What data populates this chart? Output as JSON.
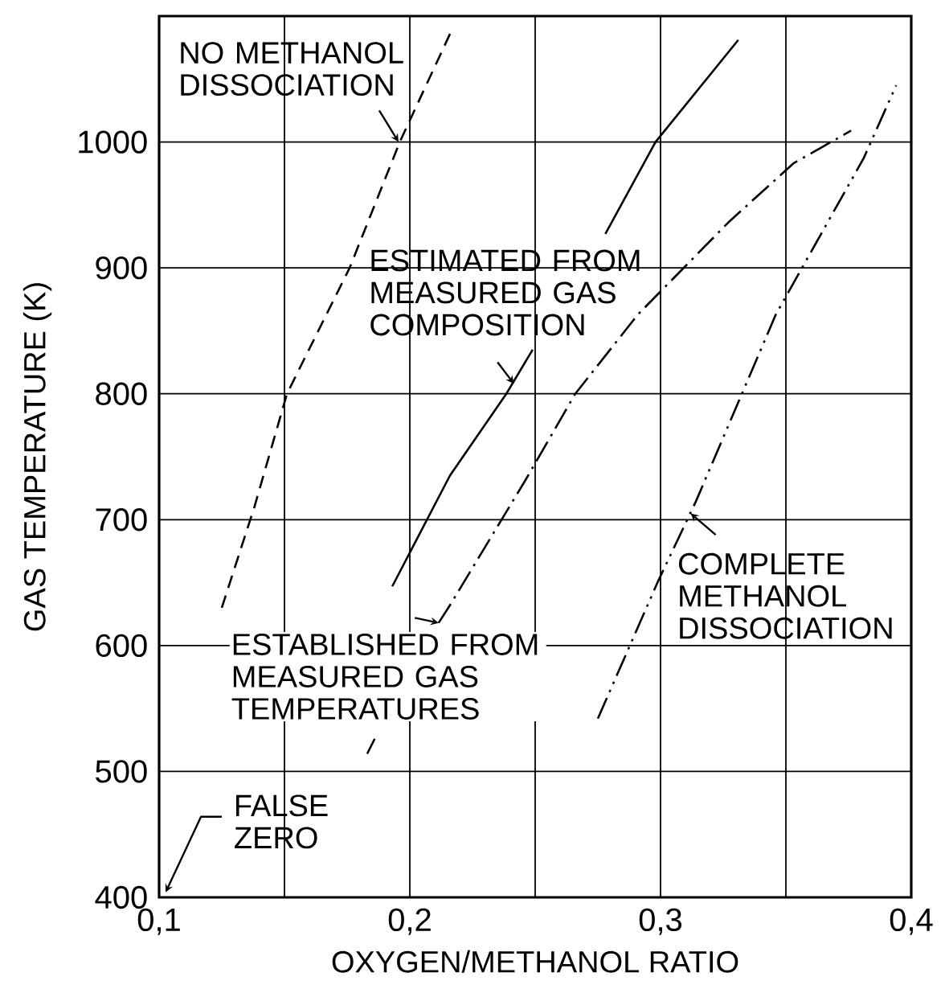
{
  "chart_data": {
    "type": "line",
    "xlabel": "OXYGEN/METHANOL RATIO",
    "ylabel": "GAS TEMPERATURE (K)",
    "xlim": [
      0.1,
      0.4
    ],
    "ylim": [
      400,
      1100
    ],
    "xticks": [
      {
        "value": 0.1,
        "label": "0,1"
      },
      {
        "value": 0.15,
        "label": null
      },
      {
        "value": 0.2,
        "label": "0,2"
      },
      {
        "value": 0.25,
        "label": null
      },
      {
        "value": 0.3,
        "label": "0,3"
      },
      {
        "value": 0.35,
        "label": null
      },
      {
        "value": 0.4,
        "label": "0,4"
      }
    ],
    "yticks": [
      400,
      500,
      600,
      700,
      800,
      900,
      1000
    ],
    "grid": true,
    "series": [
      {
        "color": "#000000",
        "line_style": "dashed",
        "x": [
          0.125,
          0.138,
          0.151,
          0.176,
          0.196,
          0.217
        ],
        "values": [
          630,
          710,
          800,
          900,
          1000,
          1090
        ]
      },
      {
        "color": "#000000",
        "line_style": "solid",
        "x": [
          0.193,
          0.216,
          0.2385,
          0.249,
          0.26,
          0.278,
          0.298,
          0.331
        ],
        "values": [
          647,
          735,
          800,
          835,
          null,
          927,
          1000,
          1081
        ]
      },
      {
        "color": "#000000",
        "line_style": "dash-dot",
        "x": [
          0.183,
          0.186,
          0.197,
          0.2115,
          0.216,
          0.246,
          0.266,
          0.291,
          0.327,
          0.353,
          0.376
        ],
        "values": [
          514,
          526,
          null,
          618,
          632,
          731,
          800,
          863,
          936,
          983,
          1009
        ]
      },
      {
        "color": "#000000",
        "line_style": "dash-dot-dot",
        "x": [
          0.275,
          0.299,
          0.314,
          0.346,
          0.381,
          0.394
        ],
        "values": [
          542,
          651,
          714,
          863,
          987,
          1045
        ]
      }
    ],
    "annotations": [
      {
        "text": "NO METHANOL DISSOCIATION",
        "x": 0.1955,
        "y": 1000
      },
      {
        "text": "ESTIMATED FROM MEASURED GAS COMPOSITION",
        "x": 0.2415,
        "y": 808
      },
      {
        "text": "ESTABLISHED FROM MEASURED GAS TEMPERATURES",
        "x": 0.2115,
        "y": 618
      },
      {
        "text": "COMPLETE METHANOL DISSOCIATION",
        "x": 0.312,
        "y": 705
      },
      "FALSE ZERO"
    ]
  }
}
